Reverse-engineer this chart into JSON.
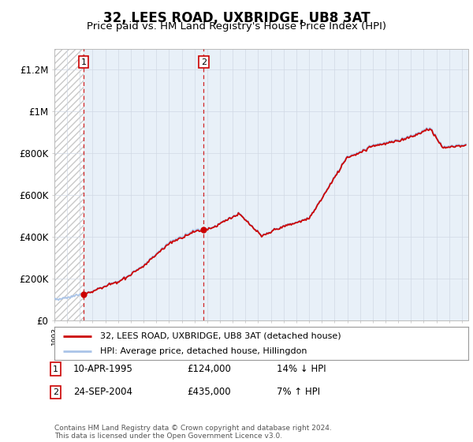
{
  "title": "32, LEES ROAD, UXBRIDGE, UB8 3AT",
  "subtitle": "Price paid vs. HM Land Registry's House Price Index (HPI)",
  "title_fontsize": 12,
  "subtitle_fontsize": 9.5,
  "ylabel_ticks": [
    "£0",
    "£200K",
    "£400K",
    "£600K",
    "£800K",
    "£1M",
    "£1.2M"
  ],
  "ytick_values": [
    0,
    200000,
    400000,
    600000,
    800000,
    1000000,
    1200000
  ],
  "ylim": [
    0,
    1300000
  ],
  "xlim_start": 1993.0,
  "xlim_end": 2025.5,
  "hpi_line_color": "#aac4e8",
  "price_line_color": "#cc0000",
  "transaction1_year": 1995.28,
  "transaction1_price": 124000,
  "transaction2_year": 2004.73,
  "transaction2_price": 435000,
  "legend_line1": "32, LEES ROAD, UXBRIDGE, UB8 3AT (detached house)",
  "legend_line2": "HPI: Average price, detached house, Hillingdon",
  "annotation1_label": "1",
  "annotation1_date": "10-APR-1995",
  "annotation1_price": "£124,000",
  "annotation1_hpi": "14% ↓ HPI",
  "annotation2_label": "2",
  "annotation2_date": "24-SEP-2004",
  "annotation2_price": "£435,000",
  "annotation2_hpi": "7% ↑ HPI",
  "footnote": "Contains HM Land Registry data © Crown copyright and database right 2024.\nThis data is licensed under the Open Government Licence v3.0.",
  "background_color": "#ffffff",
  "shade_color": "#e8f0f8"
}
